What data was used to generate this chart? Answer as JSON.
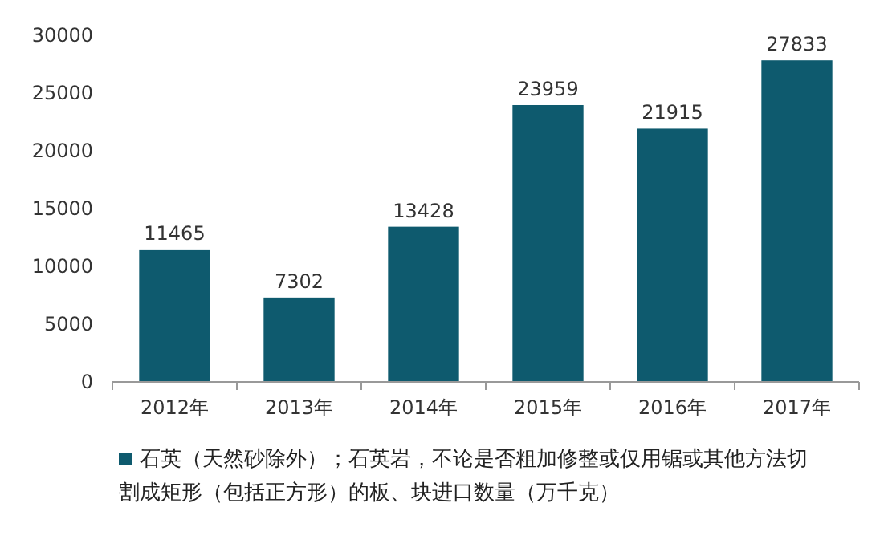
{
  "chart_data": {
    "type": "bar",
    "categories": [
      "2012年",
      "2013年",
      "2014年",
      "2015年",
      "2016年",
      "2017年"
    ],
    "series": [
      {
        "name": "石英（天然砂除外）；石英岩，不论是否粗加修整或仅用锯或其他方法切割成矩形（包括正方形）的板、块进口数量（万千克）",
        "color": "#0e5a6e",
        "values": [
          11465,
          7302,
          13428,
          23959,
          21915,
          27833
        ]
      }
    ],
    "ylim": [
      0,
      30000
    ],
    "yticks": [
      0,
      5000,
      10000,
      15000,
      20000,
      25000,
      30000
    ],
    "data_labels": true,
    "legend": "bottom",
    "grid": false
  }
}
